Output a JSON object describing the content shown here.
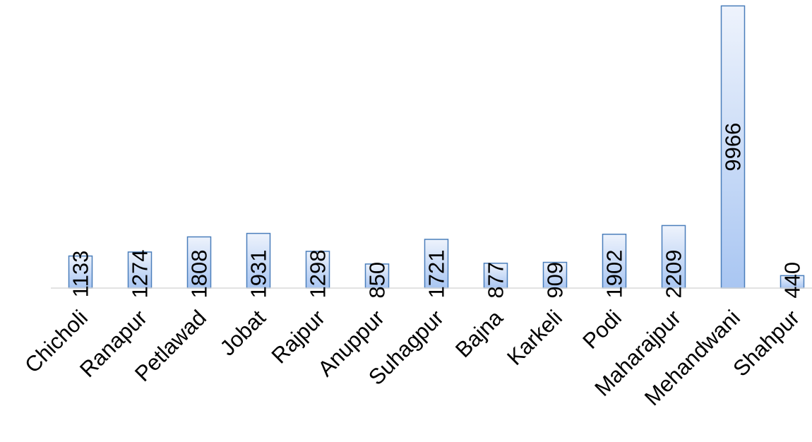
{
  "chart_data": {
    "type": "bar",
    "categories": [
      "Chicholi",
      "Ranapur",
      "Petlawad",
      "Jobat",
      "Rajpur",
      "Anuppur",
      "Suhagpur",
      "Bajna",
      "Karkeli",
      "Podi",
      "Maharajpur",
      "Mehandwani",
      "Shahpur"
    ],
    "values": [
      1133,
      1274,
      1808,
      1931,
      1298,
      850,
      1721,
      877,
      909,
      1902,
      2209,
      9966,
      440
    ],
    "data_labels": [
      "1133",
      "1274",
      "1808",
      "1931",
      "1298",
      "850",
      "1721",
      "877",
      "909",
      "1902",
      "2209",
      "9966",
      "440"
    ],
    "ylim": [
      0,
      10000
    ],
    "grid": false,
    "legend": "none",
    "title": "",
    "xlabel": "",
    "ylabel": "",
    "colors": {
      "bar_fill_top": "#eef3fc",
      "bar_fill_bottom": "#a9c6f2",
      "bar_stroke": "#4a7ebb",
      "axis": "#d9d9d9"
    }
  }
}
